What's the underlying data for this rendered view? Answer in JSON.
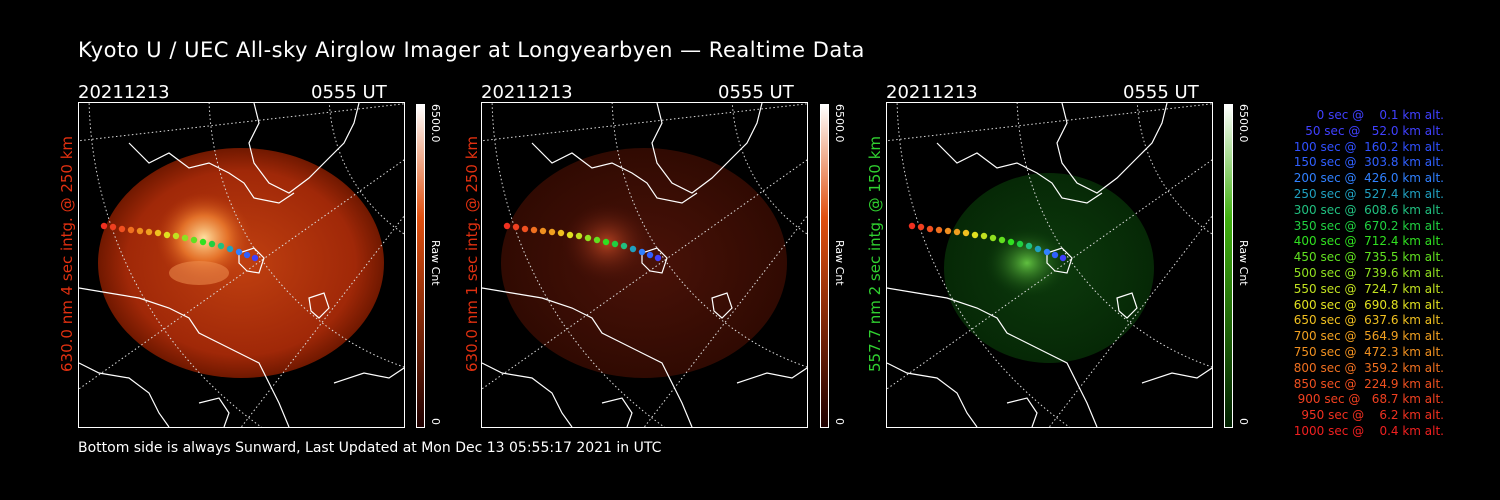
{
  "title": "Kyoto U / UEC All-sky Airglow Imager at Longyearbyen — Realtime Data",
  "panels": [
    {
      "date": "20211213",
      "time": "0555 UT",
      "ylabel": "630.0 nm 4 sec intg. @ 250 km",
      "label_color": "#e03010",
      "cbar_max": "6500.0",
      "cbar_min": "0",
      "cbar_unit": "Raw Cnt",
      "cbar_top": "#ffffff",
      "cbar_mid": "#e05010",
      "cbar_bottom": "#200000"
    },
    {
      "date": "20211213",
      "time": "0555 UT",
      "ylabel": "630.0 nm 1 sec intg. @ 250 km",
      "label_color": "#e03010",
      "cbar_max": "6500.0",
      "cbar_min": "0",
      "cbar_unit": "Raw Cnt",
      "cbar_top": "#ffffff",
      "cbar_mid": "#e05010",
      "cbar_bottom": "#200000"
    },
    {
      "date": "20211213",
      "time": "0555 UT",
      "ylabel": "557.7 nm 2 sec intg. @ 150 km",
      "label_color": "#30d030",
      "cbar_max": "6500.0",
      "cbar_min": "0",
      "cbar_unit": "Raw Cnt",
      "cbar_top": "#ffffff",
      "cbar_mid": "#40b010",
      "cbar_bottom": "#002000"
    }
  ],
  "footer": "Bottom side is always Sunward, Last Updated at Mon Dec 13 05:55:17 2021 in UTC",
  "legend": [
    {
      "text": "   0 sec @    0.1 km alt.",
      "color": "#4040ff"
    },
    {
      "text": "  50 sec @   52.0 km alt.",
      "color": "#4040ff"
    },
    {
      "text": " 100 sec @  160.2 km alt.",
      "color": "#3050ff"
    },
    {
      "text": " 150 sec @  303.8 km alt.",
      "color": "#3060ff"
    },
    {
      "text": " 200 sec @  426.0 km alt.",
      "color": "#3080ff"
    },
    {
      "text": " 250 sec @  527.4 km alt.",
      "color": "#20a0c0"
    },
    {
      "text": " 300 sec @  608.6 km alt.",
      "color": "#20c080"
    },
    {
      "text": " 350 sec @  670.2 km alt.",
      "color": "#20d040"
    },
    {
      "text": " 400 sec @  712.4 km alt.",
      "color": "#30e020"
    },
    {
      "text": " 450 sec @  735.5 km alt.",
      "color": "#60e020"
    },
    {
      "text": " 500 sec @  739.6 km alt.",
      "color": "#90e020"
    },
    {
      "text": " 550 sec @  724.7 km alt.",
      "color": "#c0e020"
    },
    {
      "text": " 600 sec @  690.8 km alt.",
      "color": "#e0e020"
    },
    {
      "text": " 650 sec @  637.6 km alt.",
      "color": "#f0c020"
    },
    {
      "text": " 700 sec @  564.9 km alt.",
      "color": "#f0a020"
    },
    {
      "text": " 750 sec @  472.3 km alt.",
      "color": "#f09020"
    },
    {
      "text": " 800 sec @  359.2 km alt.",
      "color": "#f07020"
    },
    {
      "text": " 850 sec @  224.9 km alt.",
      "color": "#f05020"
    },
    {
      "text": " 900 sec @   68.7 km alt.",
      "color": "#f04020"
    },
    {
      "text": " 950 sec @    6.2 km alt.",
      "color": "#f03020"
    },
    {
      "text": "1000 sec @    0.4 km alt.",
      "color": "#f02020"
    }
  ]
}
